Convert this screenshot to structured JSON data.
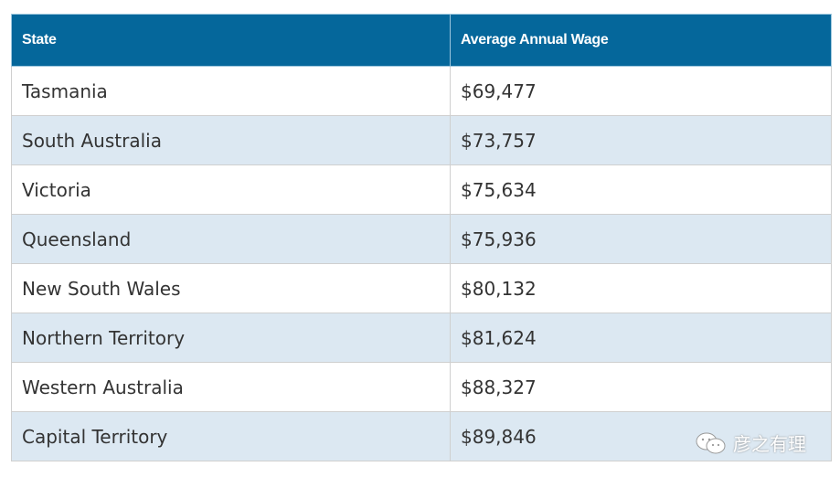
{
  "table": {
    "headers": [
      "State",
      "Average Annual Wage"
    ],
    "rows": [
      [
        "Tasmania",
        "$69,477"
      ],
      [
        "South Australia",
        "$73,757"
      ],
      [
        "Victoria",
        "$75,634"
      ],
      [
        "Queensland",
        "$75,936"
      ],
      [
        "New South Wales",
        "$80,132"
      ],
      [
        "Northern Territory",
        "$81,624"
      ],
      [
        "Western Australia",
        "$88,327"
      ],
      [
        "Capital Territory",
        "$89,846"
      ]
    ]
  },
  "watermark": {
    "icon": "wechat-icon",
    "text": "彦之有理"
  },
  "colors": {
    "header": "#05679b",
    "alt_row": "#dce8f2"
  }
}
